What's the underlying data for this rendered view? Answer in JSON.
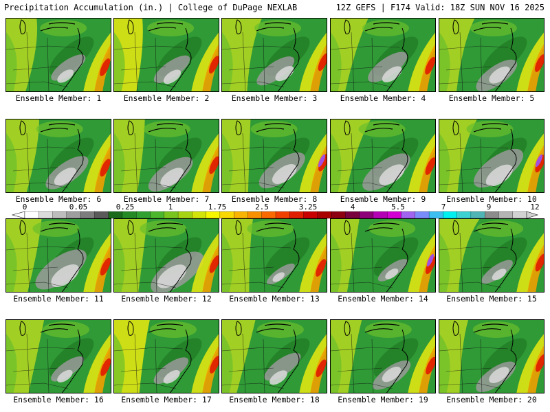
{
  "header": {
    "title": "Precipitation Accumulation (in.) | College of DuPage NEXLAB",
    "run_info": "12Z GEFS | F174 Valid: 18Z SUN NOV 16 2025"
  },
  "panels": [
    {
      "label": "Ensemble Member: 1"
    },
    {
      "label": "Ensemble Member: 2"
    },
    {
      "label": "Ensemble Member: 3"
    },
    {
      "label": "Ensemble Member: 4"
    },
    {
      "label": "Ensemble Member: 5"
    },
    {
      "label": "Ensemble Member: 6"
    },
    {
      "label": "Ensemble Member: 7"
    },
    {
      "label": "Ensemble Member: 8"
    },
    {
      "label": "Ensemble Member: 9"
    },
    {
      "label": "Ensemble Member: 10"
    },
    {
      "label": "Ensemble Member: 11"
    },
    {
      "label": "Ensemble Member: 12"
    },
    {
      "label": "Ensemble Member: 13"
    },
    {
      "label": "Ensemble Member: 14"
    },
    {
      "label": "Ensemble Member: 15"
    },
    {
      "label": "Ensemble Member: 16"
    },
    {
      "label": "Ensemble Member: 17"
    },
    {
      "label": "Ensemble Member: 18"
    },
    {
      "label": "Ensemble Member: 19"
    },
    {
      "label": "Ensemble Member: 20"
    }
  ],
  "colorbar": {
    "tick_labels": [
      "0",
      "0.05",
      "0.25",
      "1",
      "1.75",
      "2.5",
      "3.25",
      "4",
      "5.5",
      "7",
      "9",
      "12"
    ],
    "colors": [
      "#ffffff",
      "#dcdcdc",
      "#bdbdbd",
      "#9e9e9e",
      "#7d7d7d",
      "#5a5a5a",
      "#1a6a1a",
      "#248a24",
      "#30a030",
      "#4cb62c",
      "#7ac41e",
      "#a6d414",
      "#d2e40a",
      "#f6f600",
      "#f8d800",
      "#f8b400",
      "#f89000",
      "#f86a00",
      "#f04000",
      "#e01e00",
      "#c80000",
      "#a80000",
      "#8c0010",
      "#78003c",
      "#8c0078",
      "#b400b4",
      "#d200d2",
      "#a064f0",
      "#7a8cfa",
      "#3cbef0",
      "#00f0f0",
      "#3cd2d2",
      "#50b4b4",
      "#8c8c8c",
      "#b4b4b4",
      "#d2d2d2"
    ],
    "palette": {
      "green_dark": "#1a6a1a",
      "green": "#2f9a36",
      "green_light": "#6abf2c",
      "yellow_green": "#b6d820",
      "yellow": "#eaea10",
      "orange": "#f0a000",
      "red": "#e01a00",
      "grey": "#9a9a9a",
      "grey_light": "#d6d6d6",
      "purple": "#a050e0"
    }
  }
}
